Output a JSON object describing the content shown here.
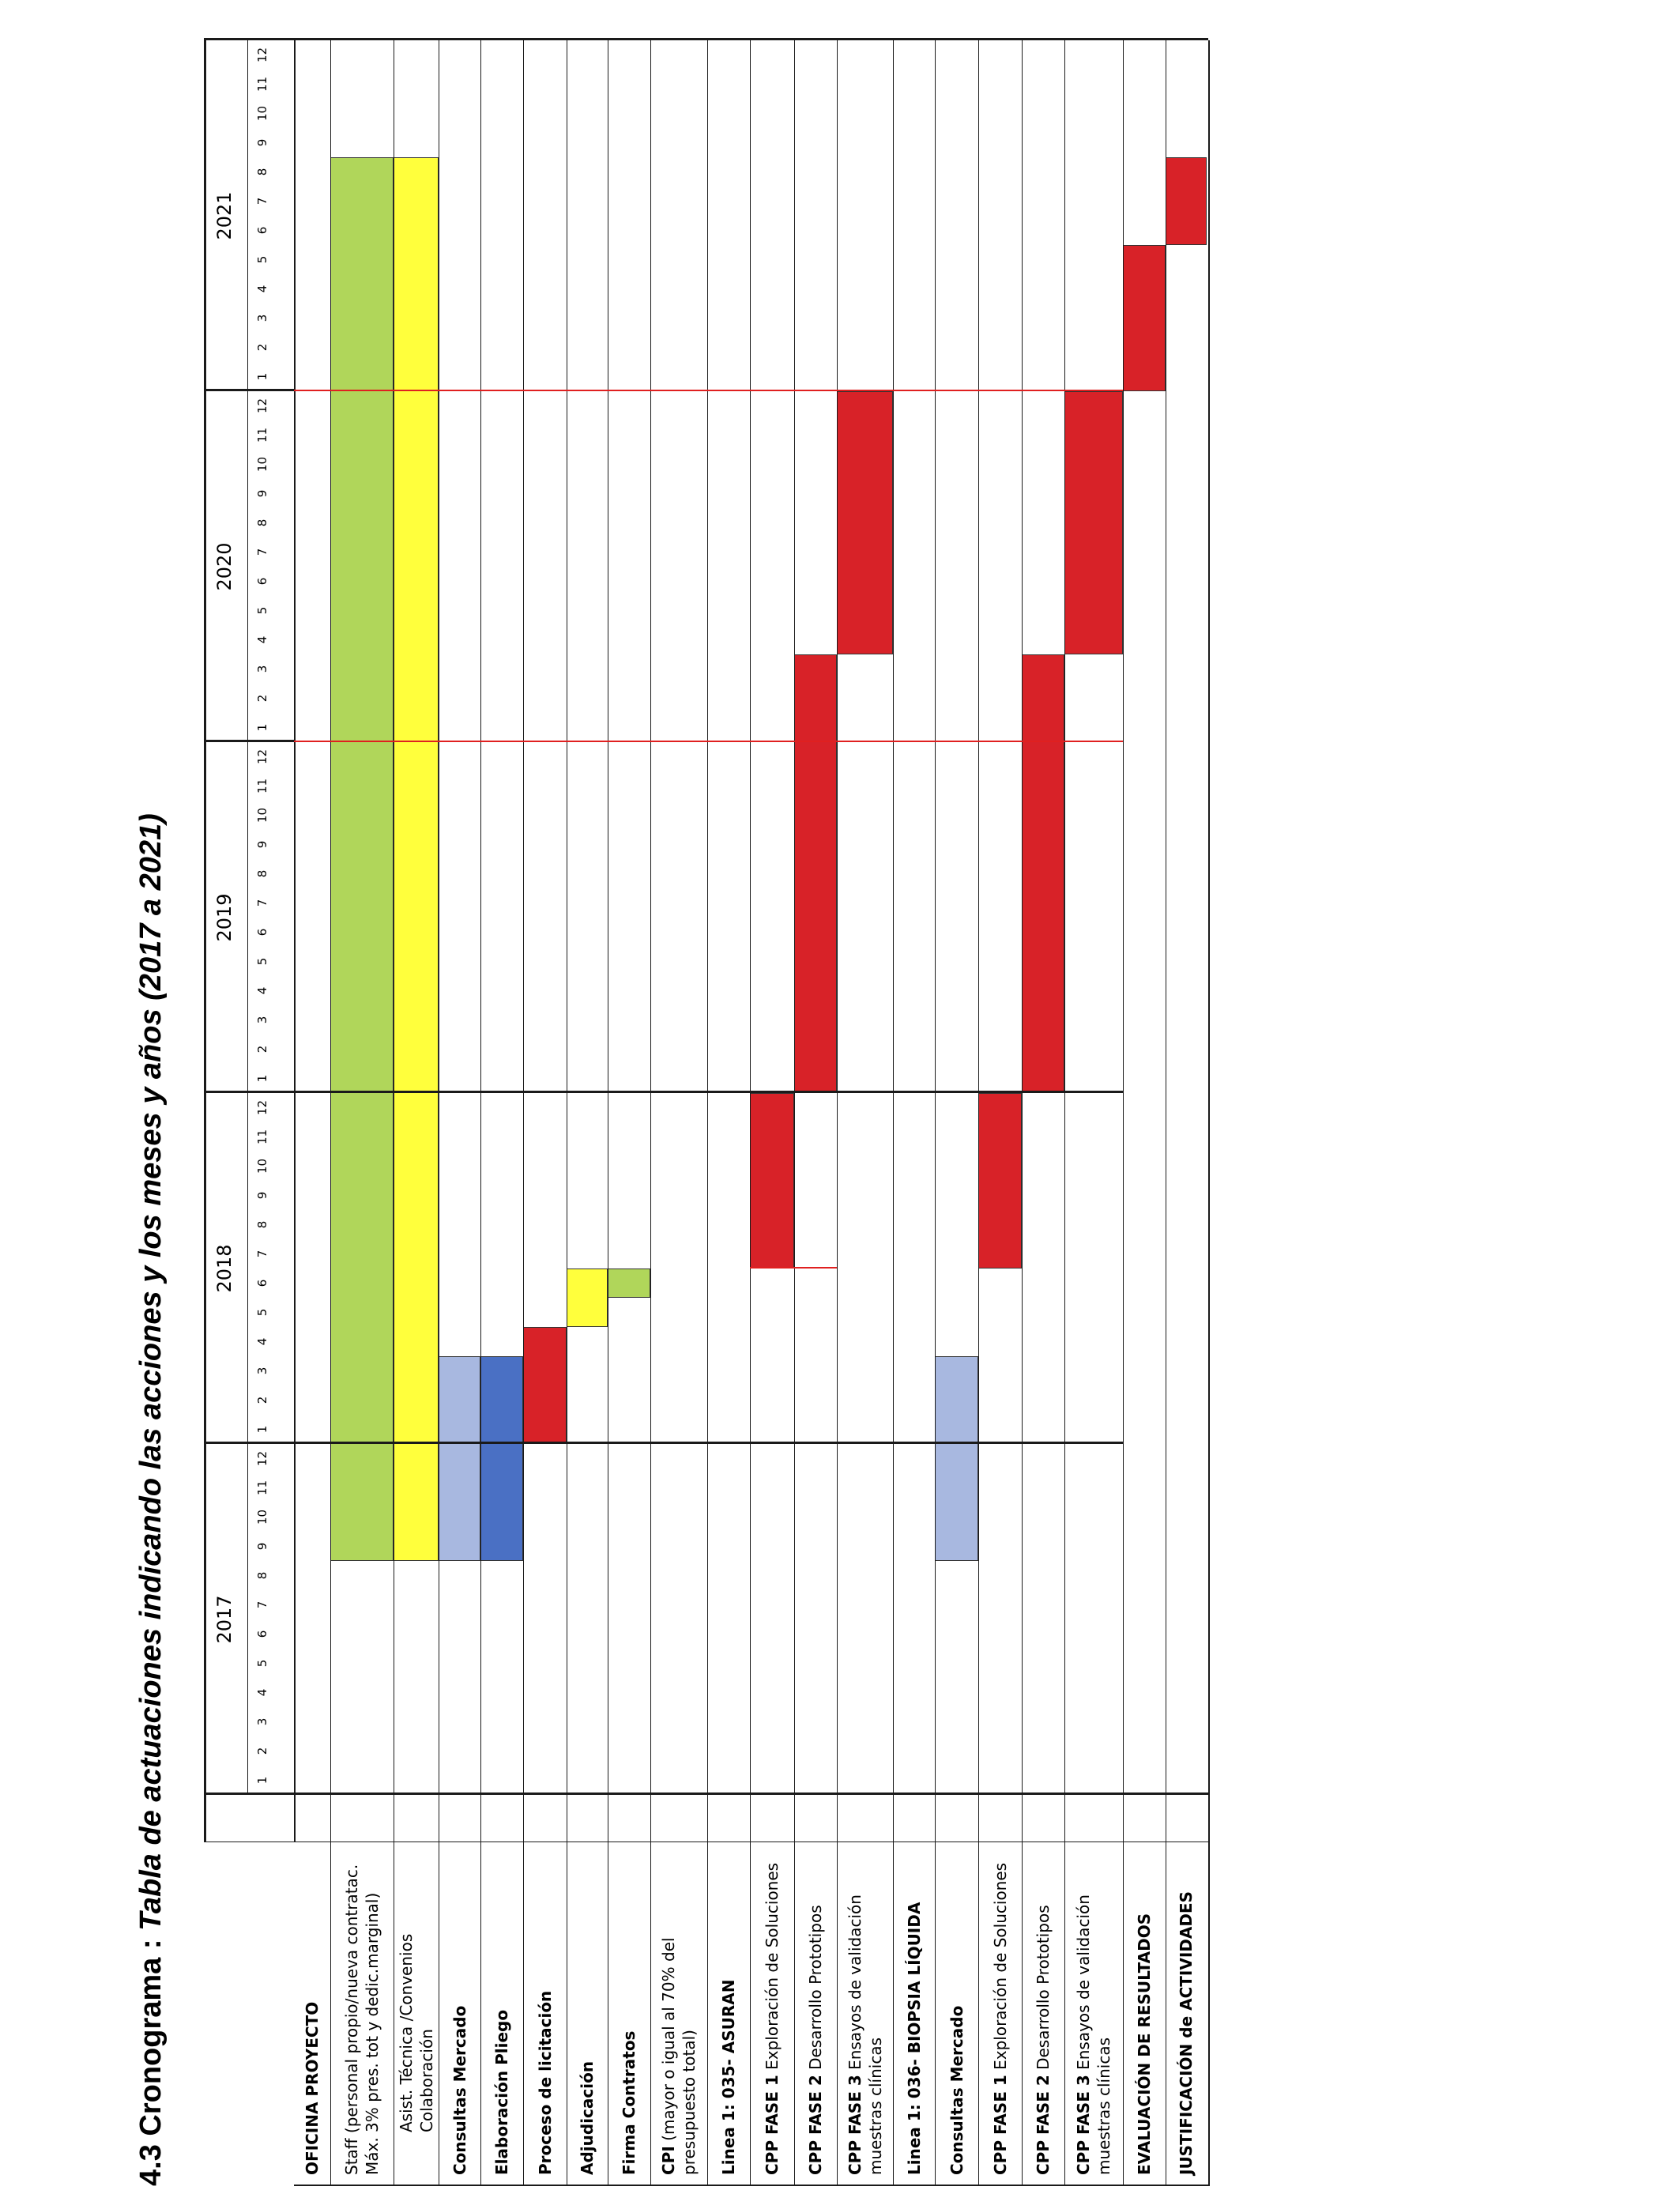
{
  "title": {
    "prefix": "4.3 Cronograma : ",
    "main": "Tabla de actuaciones indicando las acciones y los meses y años (2017 a 2021)"
  },
  "years": [
    "2017",
    "2018",
    "2019",
    "2020",
    "2021"
  ],
  "months": [
    "1",
    "2",
    "3",
    "4",
    "5",
    "6",
    "7",
    "8",
    "9",
    "10",
    "11",
    "12"
  ],
  "colors": {
    "green": "#b0d65a",
    "yellow": "#ffff3c",
    "light_blue": "#a8b8e0",
    "blue": "#4a70c4",
    "red": "#d82228",
    "divider": "#e02020"
  },
  "rows": [
    {
      "label": "OFICINA PROYECTO",
      "bold": true,
      "bars": []
    },
    {
      "label": "Staff (personal propio/nueva contratac. Máx. 3% pres. tot y dedic.marginal)",
      "bars": [
        {
          "from": 9,
          "to": 56,
          "color": "green"
        }
      ]
    },
    {
      "label": "Asist. Técnica /Convenios Colaboración",
      "indent": true,
      "bars": [
        {
          "from": 9,
          "to": 56,
          "color": "yellow"
        }
      ]
    },
    {
      "label": "Consultas Mercado",
      "bold": true,
      "bars": [
        {
          "from": 9,
          "to": 15,
          "color": "light_blue"
        }
      ]
    },
    {
      "label": "Elaboración Pliego",
      "bold": true,
      "bars": [
        {
          "from": 9,
          "to": 15,
          "color": "blue"
        }
      ]
    },
    {
      "label": "Proceso de licitación",
      "bold": true,
      "bars": [
        {
          "from": 13,
          "to": 16,
          "color": "red"
        }
      ]
    },
    {
      "label": "Adjudicación",
      "bold": true,
      "bars": [
        {
          "from": 17,
          "to": 18,
          "color": "yellow"
        }
      ]
    },
    {
      "label": "Firma Contratos",
      "bold": true,
      "bars": [
        {
          "from": 18,
          "to": 18,
          "color": "green"
        }
      ]
    },
    {
      "label_bold": "CPI",
      "label": "  (mayor o igual al 70%  del presupuesto total)",
      "bars": []
    },
    {
      "label": "Linea 1: 035- ASURAN",
      "bold": true,
      "bars": []
    },
    {
      "label_bold": "CPP FASE 1",
      "label": " Exploración de Soluciones",
      "bars": [
        {
          "from": 19,
          "to": 24,
          "color": "red"
        }
      ]
    },
    {
      "label_bold": "CPP FASE 2",
      "label": "  Desarrollo Prototipos",
      "bars": [
        {
          "from": 25,
          "to": 39,
          "color": "red"
        }
      ]
    },
    {
      "label_bold": "CPP FASE 3",
      "label": " Ensayos de validación muestras clínicas",
      "bars": [
        {
          "from": 40,
          "to": 48,
          "color": "red"
        }
      ]
    },
    {
      "label": "Linea 1: 036- BIOPSIA LÍQUIDA",
      "bold": true,
      "bars": []
    },
    {
      "label": "Consultas Mercado",
      "bold": true,
      "bars": [
        {
          "from": 9,
          "to": 15,
          "color": "light_blue"
        }
      ]
    },
    {
      "label_bold": "CPP FASE 1",
      "label": " Exploración de Soluciones",
      "bars": [
        {
          "from": 19,
          "to": 24,
          "color": "red"
        }
      ]
    },
    {
      "label_bold": "CPP FASE 2",
      "label": "  Desarrollo Prototipos",
      "bars": [
        {
          "from": 25,
          "to": 39,
          "color": "red"
        }
      ]
    },
    {
      "label_bold": "CPP FASE 3",
      "label": " Ensayos de validación muestras clínicas",
      "bars": [
        {
          "from": 40,
          "to": 48,
          "color": "red"
        }
      ]
    },
    {
      "label": "EVALUACIÓN DE RESULTADOS",
      "bold": true,
      "bars": [
        {
          "from": 49,
          "to": 53,
          "color": "red"
        }
      ]
    },
    {
      "label": "JUSTIFICACIÓN de ACTIVIDADES",
      "bold": true,
      "bars": [
        {
          "from": 54,
          "to": 56,
          "color": "red"
        }
      ]
    }
  ]
}
